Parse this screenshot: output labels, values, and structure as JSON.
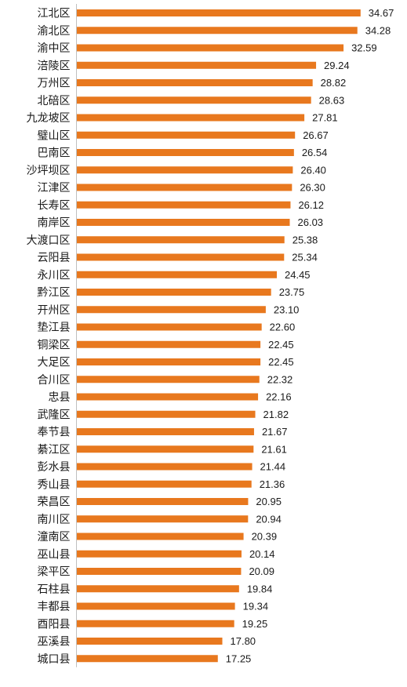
{
  "chart_data": {
    "type": "bar",
    "orientation": "horizontal",
    "title": "",
    "xlabel": "",
    "ylabel": "",
    "xlim": [
      0,
      36
    ],
    "grid": false,
    "legend": "none",
    "bar_color": "#E8781E",
    "categories": [
      "江北区",
      "渝北区",
      "渝中区",
      "涪陵区",
      "万州区",
      "北碚区",
      "九龙坡区",
      "璧山区",
      "巴南区",
      "沙坪坝区",
      "江津区",
      "长寿区",
      "南岸区",
      "大渡口区",
      "云阳县",
      "永川区",
      "黔江区",
      "开州区",
      "垫江县",
      "铜梁区",
      "大足区",
      "合川区",
      "忠县",
      "武隆区",
      "奉节县",
      "綦江区",
      "彭水县",
      "秀山县",
      "荣昌区",
      "南川区",
      "潼南区",
      "巫山县",
      "梁平区",
      "石柱县",
      "丰都县",
      "酉阳县",
      "巫溪县",
      "城口县"
    ],
    "values": [
      34.67,
      34.28,
      32.59,
      29.24,
      28.82,
      28.63,
      27.81,
      26.67,
      26.54,
      26.4,
      26.3,
      26.12,
      26.03,
      25.38,
      25.34,
      24.45,
      23.75,
      23.1,
      22.6,
      22.45,
      22.45,
      22.32,
      22.16,
      21.82,
      21.67,
      21.61,
      21.44,
      21.36,
      20.95,
      20.94,
      20.39,
      20.14,
      20.09,
      19.84,
      19.34,
      19.25,
      17.8,
      17.25
    ],
    "value_labels": [
      "34.67",
      "34.28",
      "32.59",
      "29.24",
      "28.82",
      "28.63",
      "27.81",
      "26.67",
      "26.54",
      "26.40",
      "26.30",
      "26.12",
      "26.03",
      "25.38",
      "25.34",
      "24.45",
      "23.75",
      "23.10",
      "22.60",
      "22.45",
      "22.45",
      "22.32",
      "22.16",
      "21.82",
      "21.67",
      "21.61",
      "21.44",
      "21.36",
      "20.95",
      "20.94",
      "20.39",
      "20.14",
      "20.09",
      "19.84",
      "19.34",
      "19.25",
      "17.80",
      "17.25"
    ]
  }
}
